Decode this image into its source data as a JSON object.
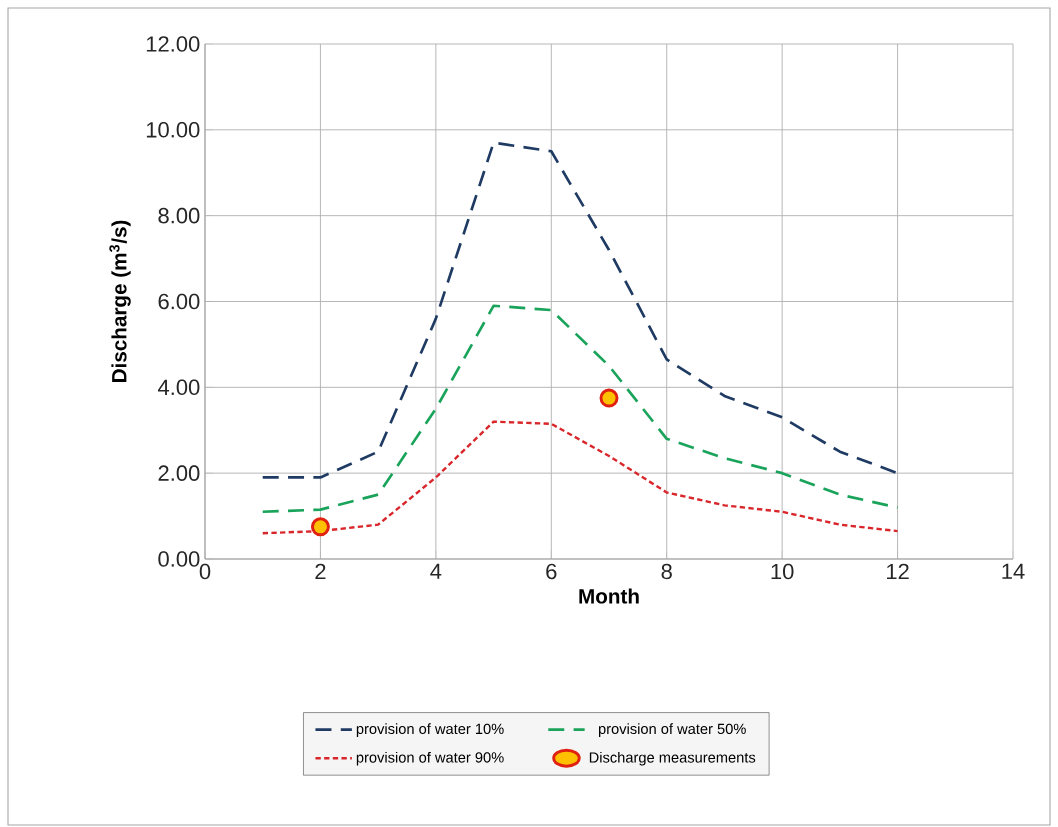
{
  "chart_data": {
    "type": "line",
    "xlabel": "Month",
    "ylabel": "Discharge (m$^{3}$/s)",
    "xlim": [
      0,
      14
    ],
    "xticks": [
      0,
      2,
      4,
      6,
      8,
      10,
      12,
      14
    ],
    "ylim": [
      0,
      12
    ],
    "yticks": [
      {
        "value": 0,
        "label": "0.00"
      },
      {
        "value": 2,
        "label": "2.00"
      },
      {
        "value": 4,
        "label": "4.00"
      },
      {
        "value": 6,
        "label": "6.00"
      },
      {
        "value": 8,
        "label": "8.00"
      },
      {
        "value": 10,
        "label": "10.00"
      },
      {
        "value": 12,
        "label": "12.00"
      }
    ],
    "grid": true,
    "legend": "bottom",
    "x": [
      1,
      2,
      3,
      4,
      5,
      6,
      7,
      8,
      9,
      10,
      11,
      12
    ],
    "series": [
      {
        "name": "provision of water 10%",
        "color": "#1f3b63",
        "line_style": "dashed",
        "marker": "none",
        "values": [
          1.9,
          1.9,
          2.5,
          5.6,
          9.7,
          9.5,
          7.2,
          4.65,
          3.8,
          3.3,
          2.5,
          2.0
        ]
      },
      {
        "name": "provision of water 50%",
        "color": "#1aa35a",
        "line_style": "dashed",
        "marker": "none",
        "values": [
          1.1,
          1.15,
          1.5,
          3.5,
          5.9,
          5.8,
          4.5,
          2.8,
          2.35,
          2.0,
          1.5,
          1.2
        ]
      },
      {
        "name": "provision of water 90%",
        "color": "#d9262b",
        "line_style": "dotted",
        "marker": "none",
        "values": [
          0.6,
          0.65,
          0.8,
          1.9,
          3.2,
          3.15,
          2.4,
          1.55,
          1.25,
          1.1,
          0.8,
          0.65
        ]
      },
      {
        "name": "Discharge measurements",
        "type": "scatter",
        "color": "#e02010",
        "marker": "circle",
        "x": [
          2,
          7
        ],
        "values": [
          0.75,
          3.75
        ]
      }
    ]
  }
}
